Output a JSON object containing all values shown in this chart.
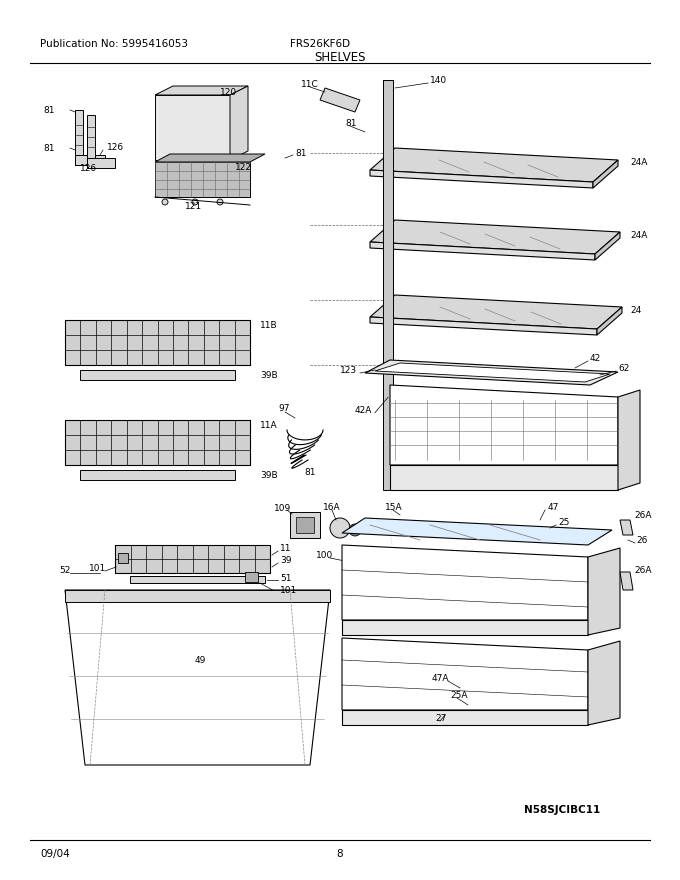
{
  "pub_no": "Publication No: 5995416053",
  "model": "FRS26KF6D",
  "section": "SHELVES",
  "date": "09/04",
  "page": "8",
  "watermark": "N58SJCIBC11",
  "bg_color": "#ffffff",
  "gray_light": "#d8d8d8",
  "gray_med": "#b0b0b0",
  "gray_dark": "#888888"
}
